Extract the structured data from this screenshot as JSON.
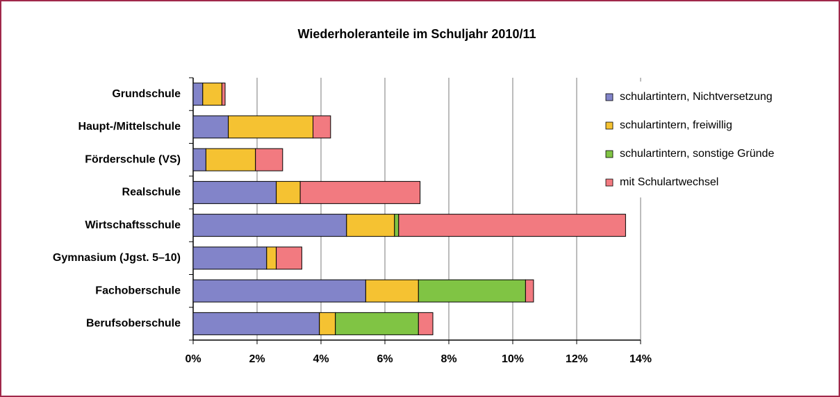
{
  "chart_data": {
    "type": "stacked-barh",
    "title": "Wiederholeranteile im Schuljahr 2010/11",
    "categories": [
      "Grundschule",
      "Haupt-/Mittelschule",
      "Förderschule (VS)",
      "Realschule",
      "Wirtschaftsschule",
      "Gymnasium (Jgst. 5–10)",
      "Fachoberschule",
      "Berufsoberschule"
    ],
    "series": [
      {
        "name": "schulartintern, Nichtversetzung",
        "color": "#8284c9",
        "values": [
          0.3,
          1.1,
          0.4,
          2.6,
          4.8,
          2.3,
          5.4,
          3.95
        ]
      },
      {
        "name": "schulartintern, freiwillig",
        "color": "#f5c232",
        "values": [
          0.6,
          2.65,
          1.55,
          0.75,
          1.5,
          0.3,
          1.65,
          0.5
        ]
      },
      {
        "name": "schulartintern, sonstige Gründe",
        "color": "#80c444",
        "values": [
          0,
          0,
          0,
          0,
          0.13,
          0,
          3.35,
          2.6
        ]
      },
      {
        "name": "mit Schulartwechsel",
        "color": "#f27a80",
        "values": [
          0.1,
          0.55,
          0.85,
          3.75,
          7.1,
          0.8,
          0.25,
          0.45
        ]
      }
    ],
    "xlim": [
      0,
      14
    ],
    "xticks": [
      {
        "value": 0,
        "label": "0%"
      },
      {
        "value": 2,
        "label": "2%"
      },
      {
        "value": 4,
        "label": "4%"
      },
      {
        "value": 6,
        "label": "6%"
      },
      {
        "value": 8,
        "label": "8%"
      },
      {
        "value": 10,
        "label": "10%"
      },
      {
        "value": 12,
        "label": "12%"
      },
      {
        "value": 14,
        "label": "14%"
      }
    ],
    "grid": true,
    "legend": "right"
  }
}
